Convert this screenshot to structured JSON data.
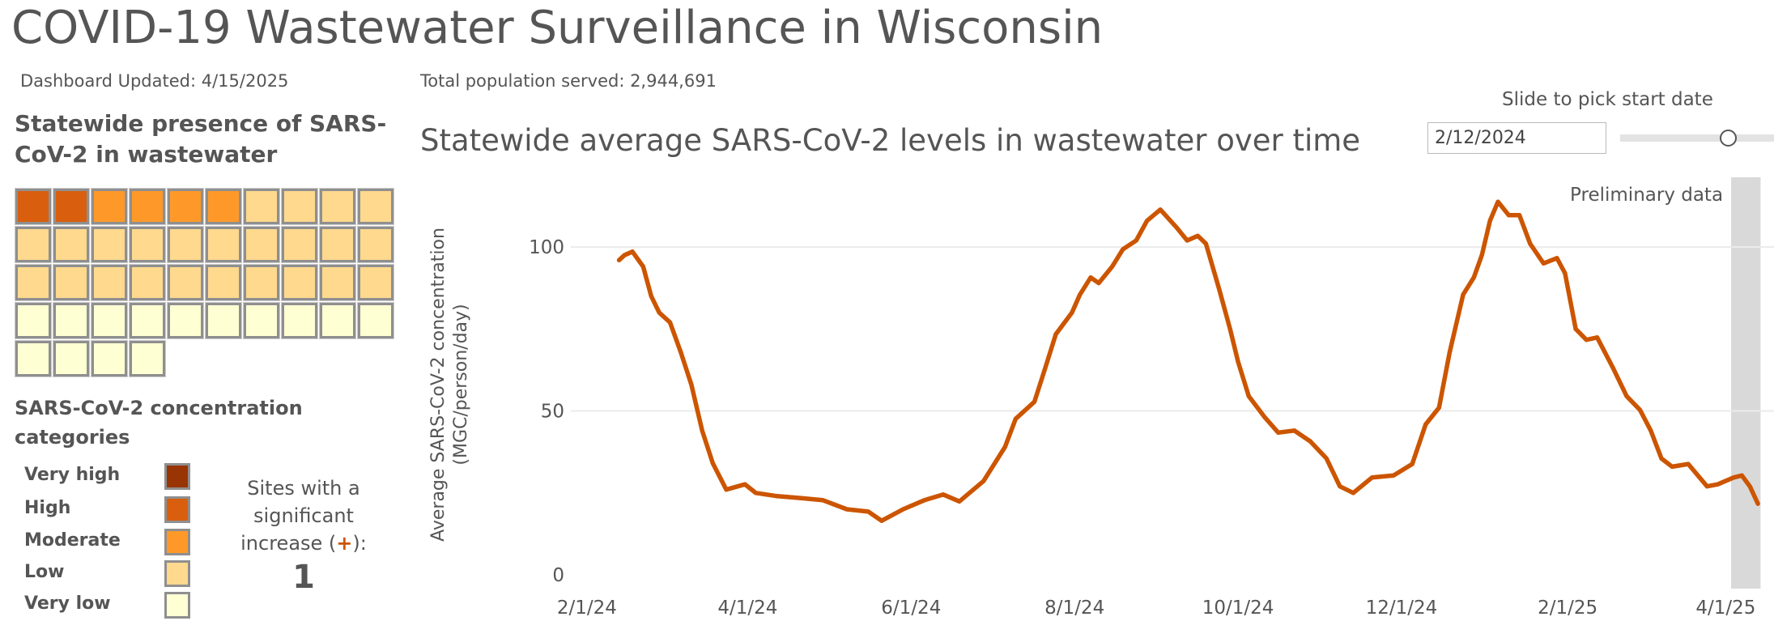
{
  "header": {
    "title": "COVID-19 Wastewater Surveillance in Wisconsin",
    "updated": "Dashboard Updated: 4/15/2025",
    "population": "Total population served: 2,944,691"
  },
  "presence": {
    "heading": "Statewide presence of SARS-CoV-2 in wastewater",
    "sites": [
      "High",
      "High",
      "Moderate",
      "Moderate",
      "Moderate",
      "Moderate",
      "Low",
      "Low",
      "Low",
      "Low",
      "Low",
      "Low",
      "Low",
      "Low",
      "Low",
      "Low",
      "Low",
      "Low",
      "Low",
      "Low",
      "Low",
      "Low",
      "Low",
      "Low",
      "Low",
      "Low",
      "Low",
      "Low",
      "Low",
      "Low",
      "Very low",
      "Very low",
      "Very low",
      "Very low",
      "Very low",
      "Very low",
      "Very low",
      "Very low",
      "Very low",
      "Very low",
      "Very low",
      "Very low",
      "Very low",
      "Very low"
    ]
  },
  "legend": {
    "heading": "SARS-CoV-2 concentration categories",
    "categories": [
      {
        "label": "Very high",
        "color": "#993404"
      },
      {
        "label": "High",
        "color": "#d95f0e"
      },
      {
        "label": "Moderate",
        "color": "#fe9929"
      },
      {
        "label": "Low",
        "color": "#fed98e"
      },
      {
        "label": "Very low",
        "color": "#ffffd4"
      }
    ]
  },
  "significant_increase": {
    "label_before": "Sites with a significant increase (",
    "plus": "+",
    "label_after": "):",
    "count": "1"
  },
  "controls": {
    "slider_label": "Slide to pick start date",
    "start_date": "2/12/2024",
    "slider_fraction": 0.7
  },
  "chart_data": {
    "type": "line",
    "title": "Statewide average SARS-CoV-2 levels in wastewater over time",
    "ylabel": "Average SARS-CoV-2 concentration (MGC/person/day)",
    "xlabel": "",
    "xlim": [
      "2024-01-26",
      "2025-04-19"
    ],
    "ylim": [
      0,
      122
    ],
    "yticks": [
      0,
      50,
      100
    ],
    "xticks": [
      {
        "date": "2024-02-01",
        "label": "2/1/24"
      },
      {
        "date": "2024-04-01",
        "label": "4/1/24"
      },
      {
        "date": "2024-06-01",
        "label": "6/1/24"
      },
      {
        "date": "2024-08-01",
        "label": "8/1/24"
      },
      {
        "date": "2024-10-01",
        "label": "10/1/24"
      },
      {
        "date": "2024-12-01",
        "label": "12/1/24"
      },
      {
        "date": "2025-02-01",
        "label": "2/1/25"
      },
      {
        "date": "2025-04-01",
        "label": "4/1/25"
      }
    ],
    "grid": "horizontal",
    "line_color": "#cc5500",
    "preliminary": {
      "label": "Preliminary data",
      "start": "2025-04-03",
      "end": "2025-04-14",
      "color": "#d9d9d9"
    },
    "points": [
      [
        "2024-02-13",
        96
      ],
      [
        "2024-02-15",
        97.5
      ],
      [
        "2024-02-18",
        98.6
      ],
      [
        "2024-02-22",
        94
      ],
      [
        "2024-02-25",
        85
      ],
      [
        "2024-02-28",
        80
      ],
      [
        "2024-03-03",
        77
      ],
      [
        "2024-03-07",
        68
      ],
      [
        "2024-03-11",
        58
      ],
      [
        "2024-03-15",
        44
      ],
      [
        "2024-03-19",
        34
      ],
      [
        "2024-03-24",
        26
      ],
      [
        "2024-03-31",
        27.6
      ],
      [
        "2024-04-04",
        25
      ],
      [
        "2024-04-12",
        24
      ],
      [
        "2024-04-21",
        23.4
      ],
      [
        "2024-04-29",
        22.8
      ],
      [
        "2024-05-08",
        20
      ],
      [
        "2024-05-16",
        19.3
      ],
      [
        "2024-05-21",
        16.5
      ],
      [
        "2024-05-29",
        20
      ],
      [
        "2024-06-06",
        22.8
      ],
      [
        "2024-06-13",
        24.5
      ],
      [
        "2024-06-19",
        22.4
      ],
      [
        "2024-06-28",
        28.6
      ],
      [
        "2024-07-06",
        39
      ],
      [
        "2024-07-10",
        47.6
      ],
      [
        "2024-07-17",
        52.8
      ],
      [
        "2024-07-21",
        63
      ],
      [
        "2024-07-25",
        73.4
      ],
      [
        "2024-07-31",
        80
      ],
      [
        "2024-08-03",
        85.5
      ],
      [
        "2024-08-07",
        90.7
      ],
      [
        "2024-08-10",
        89
      ],
      [
        "2024-08-15",
        94
      ],
      [
        "2024-08-19",
        99.3
      ],
      [
        "2024-08-24",
        102
      ],
      [
        "2024-08-28",
        108
      ],
      [
        "2024-09-02",
        111.4
      ],
      [
        "2024-09-08",
        106
      ],
      [
        "2024-09-12",
        102
      ],
      [
        "2024-09-16",
        103.4
      ],
      [
        "2024-09-19",
        101
      ],
      [
        "2024-09-24",
        87
      ],
      [
        "2024-09-28",
        75
      ],
      [
        "2024-10-01",
        65
      ],
      [
        "2024-10-05",
        54.5
      ],
      [
        "2024-10-11",
        48
      ],
      [
        "2024-10-16",
        43.4
      ],
      [
        "2024-10-22",
        44
      ],
      [
        "2024-10-28",
        40.7
      ],
      [
        "2024-11-03",
        35.5
      ],
      [
        "2024-11-08",
        27
      ],
      [
        "2024-11-13",
        25
      ],
      [
        "2024-11-20",
        29.7
      ],
      [
        "2024-11-28",
        30.3
      ],
      [
        "2024-12-05",
        33.8
      ],
      [
        "2024-12-10",
        45.9
      ],
      [
        "2024-12-15",
        51
      ],
      [
        "2024-12-19",
        68
      ],
      [
        "2024-12-24",
        85.5
      ],
      [
        "2024-12-28",
        90.7
      ],
      [
        "2024-12-31",
        97.6
      ],
      [
        "2025-01-03",
        108
      ],
      [
        "2025-01-06",
        113.8
      ],
      [
        "2025-01-10",
        109.7
      ],
      [
        "2025-01-14",
        109.7
      ],
      [
        "2025-01-18",
        101
      ],
      [
        "2025-01-23",
        95
      ],
      [
        "2025-01-28",
        96.6
      ],
      [
        "2025-01-31",
        92
      ],
      [
        "2025-02-04",
        75
      ],
      [
        "2025-02-08",
        71.7
      ],
      [
        "2025-02-12",
        72.4
      ],
      [
        "2025-02-18",
        63
      ],
      [
        "2025-02-23",
        54.5
      ],
      [
        "2025-02-28",
        50.3
      ],
      [
        "2025-03-04",
        44
      ],
      [
        "2025-03-08",
        35.5
      ],
      [
        "2025-03-12",
        33
      ],
      [
        "2025-03-18",
        33.8
      ],
      [
        "2025-03-25",
        27
      ],
      [
        "2025-03-29",
        27.6
      ],
      [
        "2025-04-04",
        29.7
      ],
      [
        "2025-04-07",
        30.3
      ],
      [
        "2025-04-10",
        27
      ],
      [
        "2025-04-13",
        21.7
      ]
    ]
  }
}
